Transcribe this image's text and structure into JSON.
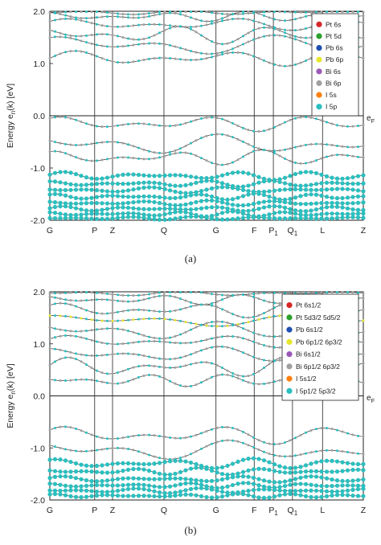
{
  "chart_data": [
    {
      "panel": "a",
      "type": "scatter",
      "subtitle": "(a)",
      "ylabel": "Energy e_n(k) [eV]",
      "ylabel_main": "Energy e",
      "ylabel_sub": "n",
      "ylabel_tail": "(k) [eV]",
      "ylim": [
        -2.0,
        2.0
      ],
      "yticks": [
        2.0,
        1.0,
        0.0,
        -1.0,
        -2.0
      ],
      "ytick_labels": [
        "2.0",
        "1.0",
        "0.0",
        "-1.0",
        "-2.0"
      ],
      "fermi_label": "e",
      "fermi_sub": "F",
      "k_labels": [
        {
          "main": "G",
          "sub": "",
          "k": 0.0
        },
        {
          "main": "P",
          "sub": "",
          "k": 0.143
        },
        {
          "main": "Z",
          "sub": "",
          "k": 0.2
        },
        {
          "main": "Q",
          "sub": "",
          "k": 0.364
        },
        {
          "main": "G",
          "sub": "",
          "k": 0.53
        },
        {
          "main": "F",
          "sub": "",
          "k": 0.652
        },
        {
          "main": "P",
          "sub": "1",
          "k": 0.713
        },
        {
          "main": "Q",
          "sub": "1",
          "k": 0.774
        },
        {
          "main": "L",
          "sub": "",
          "k": 0.87
        },
        {
          "main": "Z",
          "sub": "",
          "k": 1.0
        }
      ],
      "legend": [
        {
          "label": "Pt 6s",
          "color": "#d62728"
        },
        {
          "label": "Pt 5d",
          "color": "#2ca02c"
        },
        {
          "label": "Pb 6s",
          "color": "#1f4fb0"
        },
        {
          "label": "Pb 6p",
          "color": "#e6e62e"
        },
        {
          "label": "Bi 6s",
          "color": "#9b59b6"
        },
        {
          "label": "Bi 6p",
          "color": "#a0a0a0"
        },
        {
          "label": "I 5s",
          "color": "#ff7f0e"
        },
        {
          "label": "I 5p",
          "color": "#2bbfbf"
        }
      ],
      "legend_position": "top-right",
      "bands": [
        {
          "e0": 1.1,
          "amp": 0.15,
          "f": 3.0,
          "p": 0.0,
          "bold": false
        },
        {
          "e0": 1.35,
          "amp": 0.2,
          "f": 2.2,
          "p": 1.0,
          "bold": false
        },
        {
          "e0": 1.55,
          "amp": 0.18,
          "f": 3.5,
          "p": 2.0,
          "bold": false
        },
        {
          "e0": 1.75,
          "amp": 0.12,
          "f": 2.8,
          "p": 0.5,
          "bold": false
        },
        {
          "e0": 1.9,
          "amp": 0.1,
          "f": 4.0,
          "p": 1.5,
          "bold": false
        },
        {
          "e0": 1.98,
          "amp": 0.05,
          "f": 3.0,
          "p": 3.0,
          "bold": false
        },
        {
          "e0": -0.15,
          "amp": 0.15,
          "f": 3.2,
          "p": 0.8,
          "bold": false
        },
        {
          "e0": -0.55,
          "amp": 0.2,
          "f": 2.6,
          "p": 2.2,
          "bold": false
        },
        {
          "e0": -0.8,
          "amp": 0.15,
          "f": 3.8,
          "p": 1.1,
          "bold": false
        },
        {
          "e0": -1.15,
          "amp": 0.08,
          "f": 4.5,
          "p": 0.3,
          "bold": true
        },
        {
          "e0": -1.3,
          "amp": 0.06,
          "f": 5.0,
          "p": 1.4,
          "bold": true
        },
        {
          "e0": -1.42,
          "amp": 0.06,
          "f": 4.2,
          "p": 2.6,
          "bold": true
        },
        {
          "e0": -1.55,
          "amp": 0.06,
          "f": 5.5,
          "p": 0.9,
          "bold": true
        },
        {
          "e0": -1.67,
          "amp": 0.05,
          "f": 4.8,
          "p": 2.0,
          "bold": true
        },
        {
          "e0": -1.78,
          "amp": 0.05,
          "f": 5.2,
          "p": 0.2,
          "bold": true
        },
        {
          "e0": -1.88,
          "amp": 0.05,
          "f": 6.0,
          "p": 1.7,
          "bold": true
        },
        {
          "e0": -1.96,
          "amp": 0.03,
          "f": 5.0,
          "p": 2.9,
          "bold": true
        }
      ]
    },
    {
      "panel": "b",
      "type": "scatter",
      "subtitle": "(b)",
      "ylabel": "Energy e_n(k) [eV]",
      "ylabel_main": "Energy e",
      "ylabel_sub": "n",
      "ylabel_tail": "(k) [eV]",
      "ylim": [
        -2.0,
        2.0
      ],
      "yticks": [
        2.0,
        1.0,
        0.0,
        -1.0,
        -2.0
      ],
      "ytick_labels": [
        "2.0",
        "1.0",
        "0.0",
        "-1.0",
        "-2.0"
      ],
      "fermi_label": "e",
      "fermi_sub": "F",
      "k_labels": [
        {
          "main": "G",
          "sub": "",
          "k": 0.0
        },
        {
          "main": "P",
          "sub": "",
          "k": 0.143
        },
        {
          "main": "Z",
          "sub": "",
          "k": 0.2
        },
        {
          "main": "Q",
          "sub": "",
          "k": 0.364
        },
        {
          "main": "G",
          "sub": "",
          "k": 0.53
        },
        {
          "main": "F",
          "sub": "",
          "k": 0.652
        },
        {
          "main": "P",
          "sub": "1",
          "k": 0.713
        },
        {
          "main": "Q",
          "sub": "1",
          "k": 0.774
        },
        {
          "main": "L",
          "sub": "",
          "k": 0.87
        },
        {
          "main": "Z",
          "sub": "",
          "k": 1.0
        }
      ],
      "legend": [
        {
          "label": "Pt 6s1/2",
          "color": "#d62728"
        },
        {
          "label": "Pt 5d3/2 5d5/2",
          "color": "#2ca02c"
        },
        {
          "label": "Pb 6s1/2",
          "color": "#1f4fb0"
        },
        {
          "label": "Pb 6p1/2 6p3/2",
          "color": "#e6e62e"
        },
        {
          "label": "Bi 6s1/2",
          "color": "#9b59b6"
        },
        {
          "label": "Bi 6p1/2 6p3/2",
          "color": "#a0a0a0"
        },
        {
          "label": "I 5s1/2",
          "color": "#ff7f0e"
        },
        {
          "label": "I 5p1/2 5p3/2",
          "color": "#2bbfbf"
        }
      ],
      "legend_position": "top-right",
      "bands": [
        {
          "e0": 1.05,
          "amp": 0.12,
          "f": 3.0,
          "p": 0.4,
          "bold": false
        },
        {
          "e0": 1.45,
          "amp": 0.12,
          "f": 2.0,
          "p": 1.2,
          "bold": false,
          "yellow": true
        },
        {
          "e0": 1.25,
          "amp": 0.18,
          "f": 2.6,
          "p": 2.2,
          "bold": false
        },
        {
          "e0": 1.65,
          "amp": 0.15,
          "f": 3.4,
          "p": 0.7,
          "bold": false
        },
        {
          "e0": 1.85,
          "amp": 0.1,
          "f": 4.0,
          "p": 1.9,
          "bold": false
        },
        {
          "e0": 1.97,
          "amp": 0.05,
          "f": 3.0,
          "p": 3.1,
          "bold": false
        },
        {
          "e0": 0.8,
          "amp": 0.15,
          "f": 2.8,
          "p": 1.5,
          "bold": false
        },
        {
          "e0": 0.55,
          "amp": 0.2,
          "f": 3.6,
          "p": 0.2,
          "bold": false
        },
        {
          "e0": 0.3,
          "amp": 0.12,
          "f": 4.2,
          "p": 2.6,
          "bold": false
        },
        {
          "e0": -0.75,
          "amp": 0.18,
          "f": 3.0,
          "p": 0.6,
          "bold": false
        },
        {
          "e0": -1.05,
          "amp": 0.2,
          "f": 2.5,
          "p": 2.0,
          "bold": false
        },
        {
          "e0": -1.3,
          "amp": 0.1,
          "f": 4.0,
          "p": 1.0,
          "bold": true
        },
        {
          "e0": -1.45,
          "amp": 0.07,
          "f": 5.0,
          "p": 2.4,
          "bold": true
        },
        {
          "e0": -1.6,
          "amp": 0.06,
          "f": 4.4,
          "p": 0.4,
          "bold": true
        },
        {
          "e0": -1.72,
          "amp": 0.05,
          "f": 5.6,
          "p": 1.6,
          "bold": true
        },
        {
          "e0": -1.82,
          "amp": 0.05,
          "f": 4.8,
          "p": 2.8,
          "bold": true
        },
        {
          "e0": -1.92,
          "amp": 0.04,
          "f": 6.0,
          "p": 0.9,
          "bold": true
        }
      ]
    }
  ]
}
